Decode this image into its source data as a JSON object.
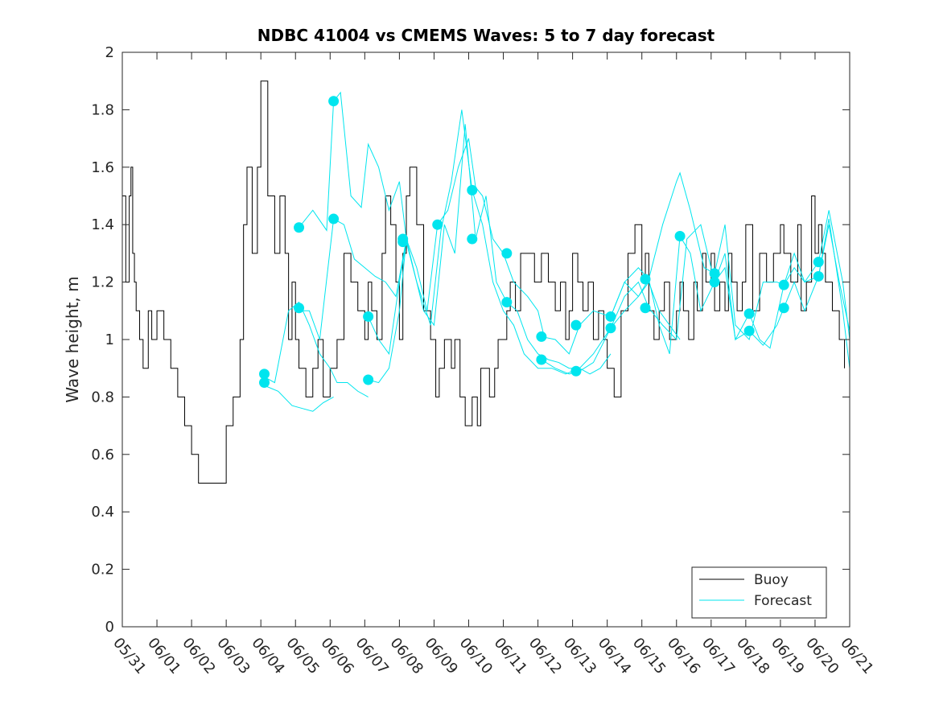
{
  "chart_data": {
    "type": "line",
    "title": "NDBC 41004 vs CMEMS Waves: 5 to 7 day forecast",
    "xlabel": "",
    "ylabel": "Wave height, m",
    "xlim": [
      "05/31",
      "06/21"
    ],
    "ylim": [
      0,
      2
    ],
    "x_tick_labels": [
      "05/31",
      "06/01",
      "06/02",
      "06/03",
      "06/04",
      "06/05",
      "06/06",
      "06/07",
      "06/08",
      "06/09",
      "06/10",
      "06/11",
      "06/12",
      "06/13",
      "06/14",
      "06/15",
      "06/16",
      "06/17",
      "06/18",
      "06/19",
      "06/20",
      "06/21"
    ],
    "y_tick_labels": [
      "0",
      "0.2",
      "0.4",
      "0.6",
      "0.8",
      "1",
      "1.2",
      "1.4",
      "1.6",
      "1.8",
      "2"
    ],
    "y_ticks": [
      0,
      0.2,
      0.4,
      0.6,
      0.8,
      1,
      1.2,
      1.4,
      1.6,
      1.8,
      2
    ],
    "grid": false,
    "legend_position": "bottom-right",
    "colors": {
      "buoy": "#000000",
      "forecast": "#00e5ee"
    },
    "series": [
      {
        "name": "Buoy",
        "x_days": [
          0,
          0.1,
          0.2,
          0.25,
          0.3,
          0.35,
          0.4,
          0.5,
          0.6,
          0.75,
          0.85,
          1.0,
          1.2,
          1.4,
          1.6,
          1.8,
          2.0,
          2.2,
          2.35,
          2.5,
          2.7,
          2.8,
          3.0,
          3.2,
          3.4,
          3.5,
          3.6,
          3.75,
          3.9,
          4.0,
          4.2,
          4.4,
          4.55,
          4.7,
          4.8,
          4.9,
          5.0,
          5.1,
          5.2,
          5.3,
          5.5,
          5.65,
          5.8,
          6.0,
          6.2,
          6.4,
          6.6,
          6.8,
          7.0,
          7.1,
          7.2,
          7.35,
          7.5,
          7.6,
          7.75,
          7.9,
          8.0,
          8.1,
          8.2,
          8.3,
          8.5,
          8.7,
          8.9,
          9.05,
          9.15,
          9.3,
          9.4,
          9.5,
          9.6,
          9.75,
          9.9,
          10.0,
          10.1,
          10.25,
          10.35,
          10.5,
          10.6,
          10.75,
          10.85,
          11.0,
          11.1,
          11.2,
          11.35,
          11.5,
          11.7,
          11.9,
          12.1,
          12.3,
          12.5,
          12.65,
          12.8,
          12.9,
          13.0,
          13.15,
          13.3,
          13.45,
          13.6,
          13.75,
          13.9,
          14.0,
          14.2,
          14.4,
          14.6,
          14.8,
          15.0,
          15.1,
          15.2,
          15.35,
          15.5,
          15.65,
          15.8,
          16.0,
          16.1,
          16.2,
          16.35,
          16.5,
          16.6,
          16.75,
          16.85,
          17.0,
          17.1,
          17.25,
          17.4,
          17.5,
          17.6,
          17.75,
          17.9,
          18.0,
          18.2,
          18.4,
          18.6,
          18.8,
          19.0,
          19.1,
          19.3,
          19.5,
          19.6,
          19.75,
          19.9,
          20.0,
          20.1,
          20.2,
          20.3,
          20.5,
          20.7,
          20.85
        ],
        "values": [
          1.5,
          1.2,
          1.5,
          1.6,
          1.3,
          1.2,
          1.1,
          1.0,
          0.9,
          1.1,
          1.0,
          1.1,
          1.0,
          0.9,
          0.8,
          0.7,
          0.6,
          0.5,
          0.5,
          0.5,
          0.5,
          0.5,
          0.7,
          0.8,
          1.0,
          1.4,
          1.6,
          1.3,
          1.6,
          1.9,
          1.5,
          1.3,
          1.5,
          1.3,
          1.0,
          1.2,
          1.0,
          0.9,
          0.9,
          0.8,
          0.9,
          1.0,
          0.8,
          0.9,
          1.0,
          1.3,
          1.2,
          1.1,
          1.0,
          1.2,
          1.1,
          1.0,
          1.3,
          1.5,
          1.4,
          1.2,
          1.0,
          1.3,
          1.5,
          1.6,
          1.4,
          1.1,
          1.0,
          0.8,
          0.9,
          1.0,
          1.0,
          0.9,
          1.0,
          0.8,
          0.7,
          0.7,
          0.8,
          0.7,
          0.9,
          0.9,
          0.8,
          0.9,
          1.0,
          1.0,
          1.1,
          1.2,
          1.1,
          1.3,
          1.3,
          1.2,
          1.3,
          1.2,
          1.1,
          1.2,
          1.0,
          1.1,
          1.3,
          1.2,
          1.1,
          1.2,
          1.0,
          1.1,
          1.0,
          0.9,
          0.8,
          1.1,
          1.3,
          1.4,
          1.2,
          1.3,
          1.1,
          1.0,
          1.1,
          1.2,
          1.0,
          1.1,
          1.2,
          1.1,
          1.0,
          1.2,
          1.1,
          1.3,
          1.2,
          1.3,
          1.1,
          1.2,
          1.1,
          1.3,
          1.2,
          1.1,
          1.2,
          1.4,
          1.1,
          1.3,
          1.2,
          1.3,
          1.4,
          1.3,
          1.2,
          1.4,
          1.1,
          1.2,
          1.5,
          1.3,
          1.4,
          1.3,
          1.2,
          1.1,
          1.0,
          0.9
        ]
      },
      {
        "name": "Forecast",
        "segments": [
          {
            "x_days": [
              4.1,
              4.4,
              4.8,
              5.1,
              5.4,
              5.7,
              6.0,
              6.2,
              6.5,
              6.8,
              7.1
            ],
            "values": [
              0.87,
              0.85,
              1.1,
              1.13,
              1.05,
              0.95,
              0.9,
              0.85,
              0.85,
              0.82,
              0.8
            ]
          },
          {
            "x_days": [
              4.1,
              4.5,
              4.9,
              5.2,
              5.5,
              5.8,
              6.1
            ],
            "values": [
              0.84,
              0.82,
              0.77,
              0.76,
              0.75,
              0.78,
              0.8
            ]
          },
          {
            "x_days": [
              5.1,
              5.5,
              5.9,
              6.1,
              6.3,
              6.6,
              6.9,
              7.1,
              7.4,
              7.7,
              8.0,
              8.2
            ],
            "values": [
              1.39,
              1.45,
              1.38,
              1.83,
              1.86,
              1.5,
              1.46,
              1.68,
              1.6,
              1.45,
              1.55,
              1.35
            ]
          },
          {
            "x_days": [
              5.1,
              5.4,
              5.7,
              6.1,
              6.4,
              6.7,
              7.0,
              7.3,
              7.6,
              7.9,
              8.2,
              8.5,
              8.8,
              9.1,
              9.4,
              9.7,
              10.0,
              10.2,
              10.4,
              10.7,
              11.0,
              11.3,
              11.7,
              12.0,
              12.2
            ],
            "values": [
              1.1,
              1.1,
              1.0,
              1.42,
              1.4,
              1.28,
              1.25,
              1.22,
              1.2,
              1.15,
              1.35,
              1.25,
              1.1,
              1.4,
              1.45,
              1.6,
              1.7,
              1.53,
              1.5,
              1.35,
              1.3,
              1.2,
              1.15,
              1.1,
              1.0
            ]
          },
          {
            "x_days": [
              7.1,
              7.4,
              7.7,
              8.0,
              8.2,
              8.4,
              8.7,
              9.0,
              9.3,
              9.6,
              9.9,
              10.2,
              10.5,
              10.8,
              11.1,
              11.4,
              11.7,
              12.0,
              12.3,
              12.6,
              12.9,
              13.2,
              13.5,
              13.8,
              14.1
            ],
            "values": [
              0.86,
              0.85,
              0.9,
              1.1,
              1.35,
              1.25,
              1.1,
              1.05,
              1.4,
              1.3,
              1.75,
              1.35,
              1.5,
              1.2,
              1.13,
              1.1,
              1.0,
              0.95,
              0.93,
              0.92,
              0.9,
              0.9,
              0.88,
              0.9,
              0.95
            ]
          },
          {
            "x_days": [
              7.1,
              7.4,
              7.7,
              8.0,
              8.2,
              8.5,
              8.9,
              9.2,
              9.5,
              9.8,
              10.1,
              10.4,
              10.7,
              11.0,
              11.3,
              11.6,
              12.0,
              12.4,
              12.8,
              13.2,
              13.6,
              14.1,
              14.5,
              14.9,
              15.2,
              15.5,
              15.8,
              16.1
            ],
            "values": [
              1.08,
              1.0,
              0.95,
              1.2,
              1.34,
              1.2,
              1.05,
              1.38,
              1.55,
              1.8,
              1.52,
              1.4,
              1.2,
              1.1,
              1.05,
              0.95,
              0.9,
              0.9,
              0.88,
              0.9,
              0.95,
              1.04,
              1.1,
              1.15,
              1.2,
              1.1,
              1.05,
              1.0
            ]
          },
          {
            "x_days": [
              12.1,
              12.5,
              12.9,
              13.2,
              13.6,
              14.1,
              14.5,
              14.9,
              15.2,
              15.6,
              16.0,
              16.1,
              16.4,
              16.8,
              17.1,
              17.4,
              17.7,
              18.1,
              18.5,
              18.9,
              19.1,
              19.4,
              19.7,
              20.1,
              20.4,
              20.8,
              21.0
            ],
            "values": [
              1.01,
              1.0,
              0.95,
              1.05,
              1.1,
              1.08,
              1.2,
              1.25,
              1.21,
              1.4,
              1.55,
              1.58,
              1.45,
              1.25,
              1.23,
              1.4,
              1.05,
              1.0,
              1.2,
              1.2,
              1.19,
              1.3,
              1.2,
              1.27,
              1.45,
              1.2,
              1.0
            ]
          },
          {
            "x_days": [
              12.1,
              12.5,
              12.9,
              13.2,
              13.6,
              14.1,
              14.5,
              14.9,
              15.2,
              15.6,
              16.0,
              16.3,
              16.7,
              17.1,
              17.4,
              17.7,
              18.1,
              18.5,
              18.9,
              19.1,
              19.4,
              19.7,
              20.1,
              20.4,
              20.8,
              21.0
            ],
            "values": [
              0.93,
              0.9,
              0.88,
              0.89,
              0.92,
              1.04,
              1.15,
              1.2,
              1.11,
              1.05,
              1.0,
              1.35,
              1.4,
              1.2,
              1.3,
              1.0,
              1.03,
              0.98,
              1.05,
              1.11,
              1.2,
              1.1,
              1.22,
              1.42,
              1.1,
              0.9
            ]
          },
          {
            "x_days": [
              14.1,
              14.5,
              14.9,
              15.2,
              15.5,
              15.8,
              16.1,
              16.4,
              16.7,
              17.1,
              17.4,
              17.7,
              18.1,
              18.4,
              18.7,
              19.1,
              19.4,
              19.7,
              20.1,
              20.4,
              20.7,
              21.0
            ],
            "values": [
              1.08,
              1.2,
              1.15,
              1.21,
              1.05,
              0.95,
              1.36,
              1.3,
              1.1,
              1.2,
              1.25,
              1.0,
              1.09,
              1.0,
              0.97,
              1.19,
              1.25,
              1.2,
              1.22,
              1.4,
              1.2,
              1.03
            ]
          }
        ],
        "markers": [
          [
            4.1,
            0.88
          ],
          [
            4.1,
            0.85
          ],
          [
            5.1,
            1.39
          ],
          [
            5.1,
            1.11
          ],
          [
            6.1,
            1.83
          ],
          [
            6.1,
            1.42
          ],
          [
            7.1,
            1.08
          ],
          [
            7.1,
            0.86
          ],
          [
            8.1,
            1.35
          ],
          [
            8.1,
            1.34
          ],
          [
            9.1,
            1.4
          ],
          [
            10.1,
            1.52
          ],
          [
            10.1,
            1.35
          ],
          [
            11.1,
            1.3
          ],
          [
            11.1,
            1.13
          ],
          [
            12.1,
            1.01
          ],
          [
            12.1,
            0.93
          ],
          [
            13.1,
            1.05
          ],
          [
            13.1,
            0.89
          ],
          [
            14.1,
            1.08
          ],
          [
            14.1,
            1.04
          ],
          [
            15.1,
            1.21
          ],
          [
            15.1,
            1.11
          ],
          [
            16.1,
            1.36
          ],
          [
            17.1,
            1.23
          ],
          [
            17.1,
            1.2
          ],
          [
            18.1,
            1.09
          ],
          [
            18.1,
            1.03
          ],
          [
            19.1,
            1.19
          ],
          [
            19.1,
            1.11
          ],
          [
            20.1,
            1.27
          ],
          [
            20.1,
            1.22
          ]
        ]
      }
    ],
    "legend": [
      "Buoy",
      "Forecast"
    ]
  }
}
